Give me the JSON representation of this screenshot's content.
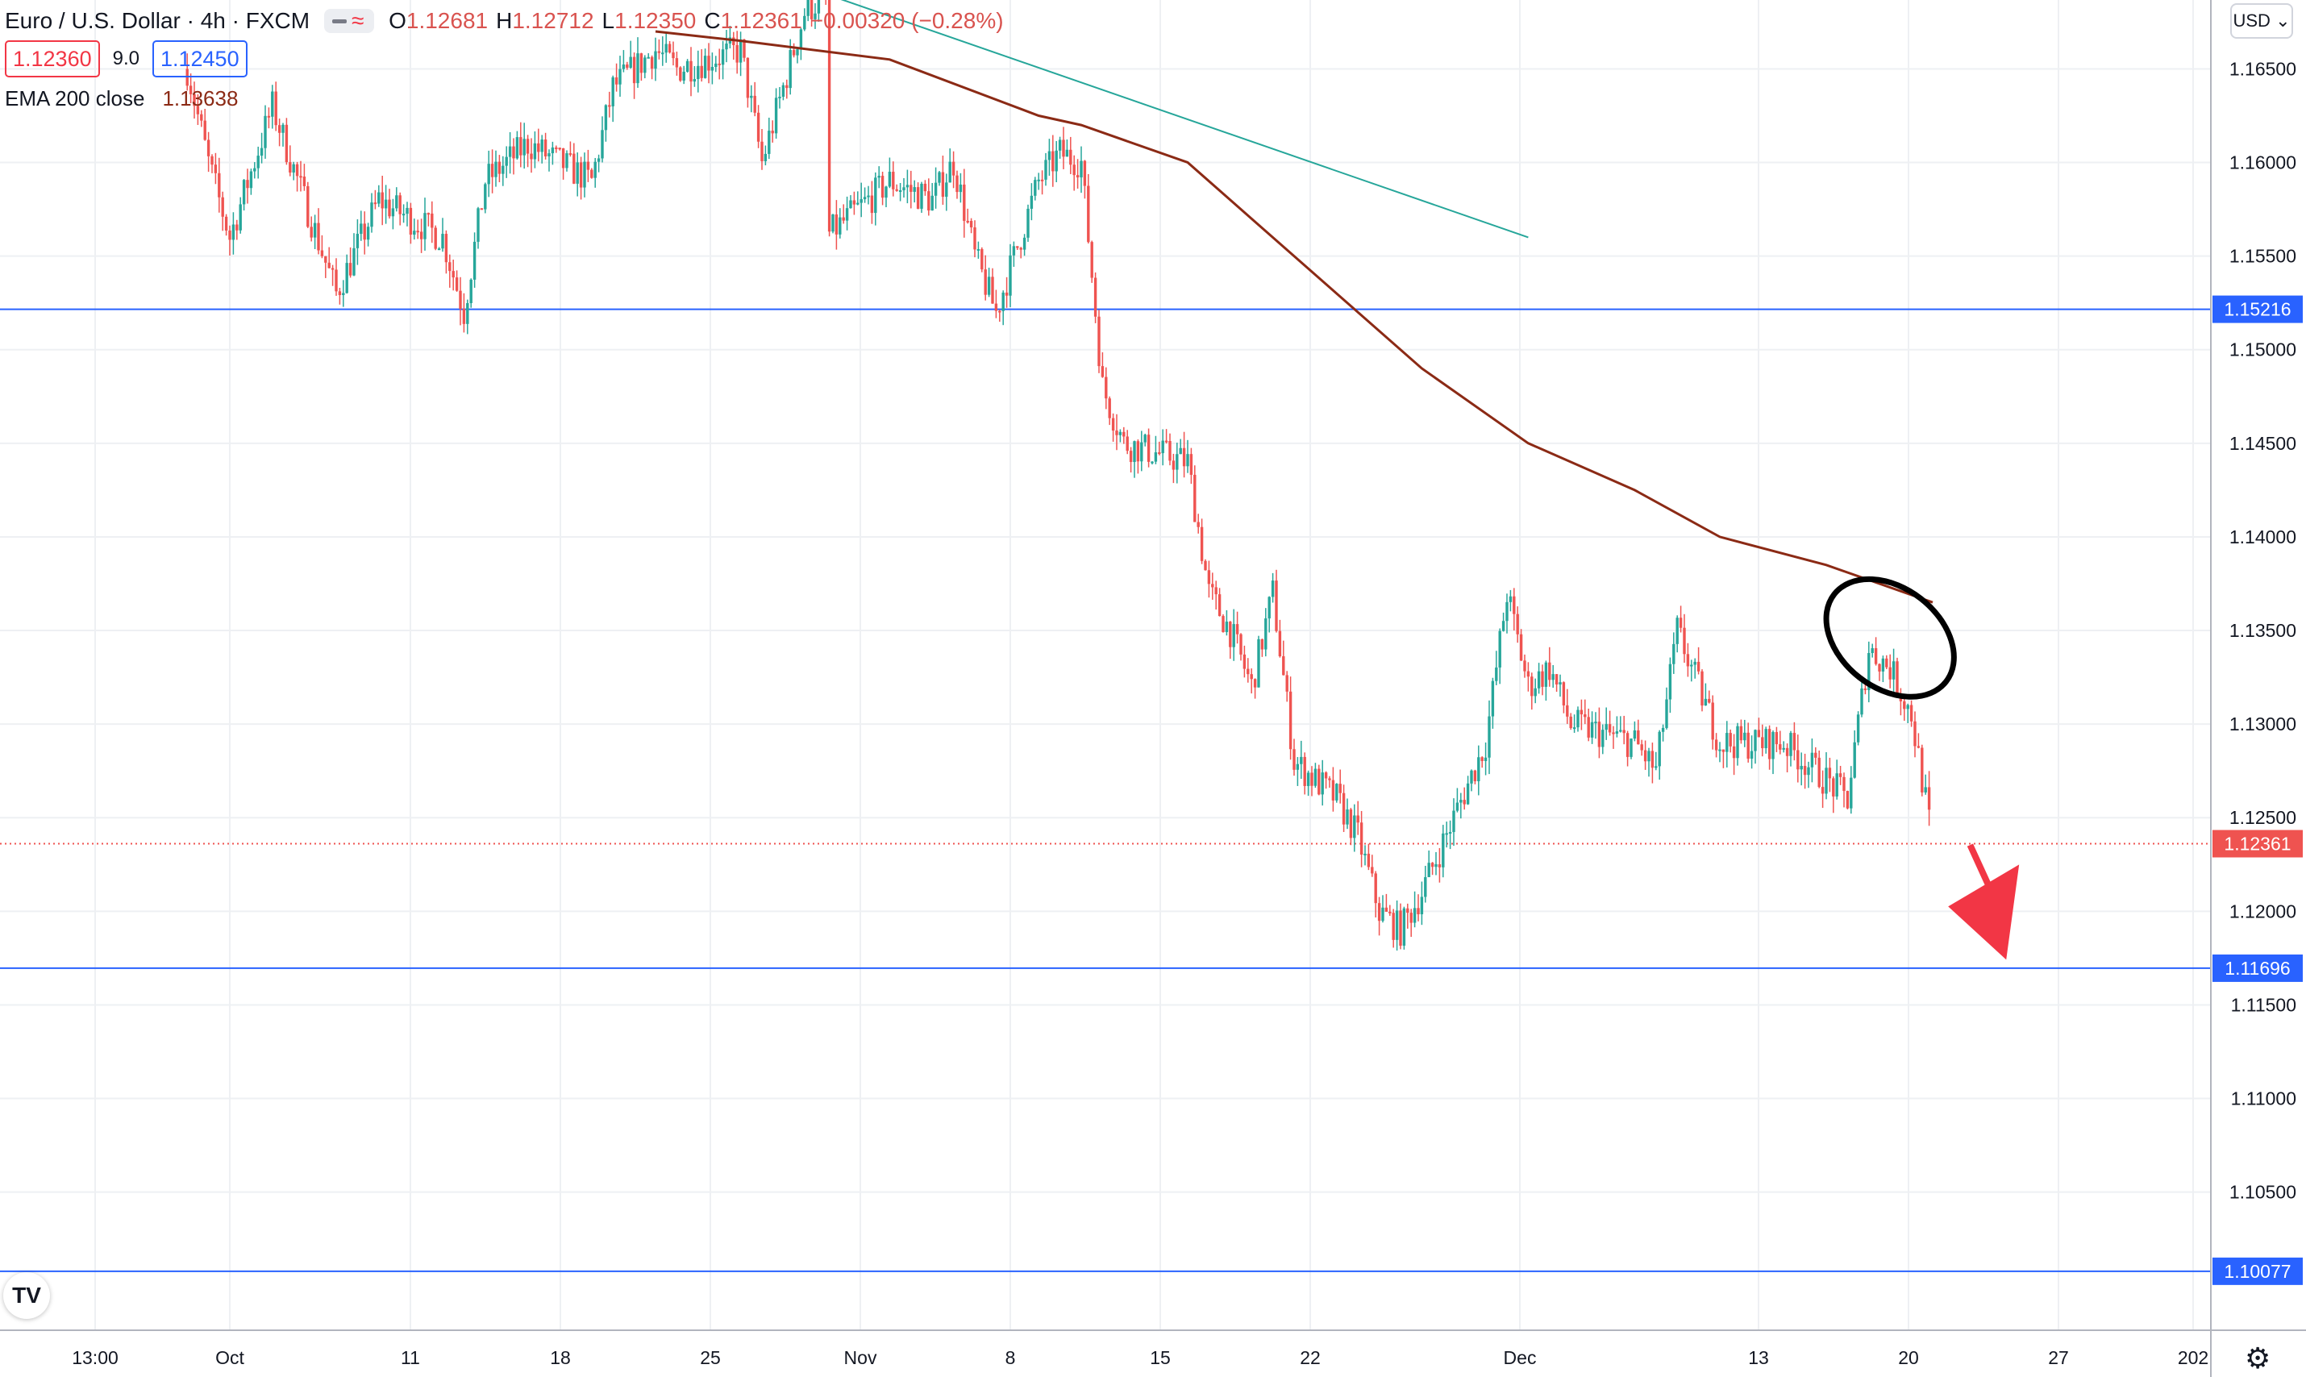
{
  "legend": {
    "symbol": "Euro / U.S. Dollar · 4h · FXCM",
    "open_label": "O",
    "open": "1.12681",
    "high_label": "H",
    "high": "1.12712",
    "low_label": "L",
    "low": "1.12350",
    "close_label": "C",
    "close": "1.12361",
    "change": "−0.00320 (−0.28%)",
    "sell_price": "1.12360",
    "spread": "9.0",
    "buy_price": "1.12450",
    "ema_label": "EMA 200 close",
    "ema_value": "1.13638"
  },
  "toolbar": {
    "currency": "USD",
    "logo": "TV",
    "settings_icon": "gear-icon"
  },
  "colors": {
    "up": "#26a69a",
    "down": "#ef5350",
    "ema": "#8b2a15",
    "hline": "#2962ff",
    "trendline": "#26a69a",
    "annotation_arrow": "#f23645"
  },
  "chart_data": {
    "type": "candlestick",
    "title": "Euro / U.S. Dollar · 4h · FXCM",
    "ylim": [
      1.09762,
      1.16868
    ],
    "y_ticks": [
      "1.16500",
      "1.16000",
      "1.15500",
      "1.15000",
      "1.14500",
      "1.14000",
      "1.13500",
      "1.13000",
      "1.12500",
      "1.12000",
      "1.11500",
      "1.11000",
      "1.10500"
    ],
    "x_ticks": [
      "13:00",
      "Oct",
      "11",
      "18",
      "25",
      "Nov",
      "8",
      "15",
      "22",
      "Dec",
      "13",
      "20",
      "27",
      "202"
    ],
    "price_path": [
      [
        "Sep 29",
        1.165
      ],
      [
        "Sep 30",
        1.16
      ],
      [
        "Oct 1",
        1.156
      ],
      [
        "Oct 3",
        1.163
      ],
      [
        "Oct 6",
        1.153
      ],
      [
        "Oct 8",
        1.158
      ],
      [
        "Oct 11",
        1.156
      ],
      [
        "Oct 12",
        1.152
      ],
      [
        "Oct 13",
        1.159
      ],
      [
        "Oct 15",
        1.161
      ],
      [
        "Oct 18",
        1.159
      ],
      [
        "Oct 19",
        1.164
      ],
      [
        "Oct 21",
        1.166
      ],
      [
        "Oct 22",
        1.165
      ],
      [
        "Oct 25",
        1.166
      ],
      [
        "Oct 26",
        1.16
      ],
      [
        "Oct 28",
        1.168
      ],
      [
        "Oct 29",
        1.169
      ],
      [
        "Oct 29",
        1.156
      ],
      [
        "Nov 1",
        1.159
      ],
      [
        "Nov 3",
        1.158
      ],
      [
        "Nov 4",
        1.16
      ],
      [
        "Nov 5",
        1.155
      ],
      [
        "Nov 6",
        1.152
      ],
      [
        "Nov 8",
        1.159
      ],
      [
        "Nov 9",
        1.1605
      ],
      [
        "Nov 10",
        1.16
      ],
      [
        "Nov 11",
        1.148
      ],
      [
        "Nov 12",
        1.145
      ],
      [
        "Nov 15",
        1.144
      ],
      [
        "Nov 16",
        1.137
      ],
      [
        "Nov 17",
        1.135
      ],
      [
        "Nov 18",
        1.132
      ],
      [
        "Nov 19",
        1.137
      ],
      [
        "Nov 20",
        1.128
      ],
      [
        "Nov 22",
        1.126
      ],
      [
        "Nov 23",
        1.124
      ],
      [
        "Nov 24",
        1.12
      ],
      [
        "Nov 25",
        1.119
      ],
      [
        "Nov 26",
        1.121
      ],
      [
        "Nov 29",
        1.129
      ],
      [
        "Nov 30",
        1.137
      ],
      [
        "Dec 1",
        1.132
      ],
      [
        "Dec 2",
        1.133
      ],
      [
        "Dec 3",
        1.13
      ],
      [
        "Dec 6",
        1.129
      ],
      [
        "Dec 7",
        1.1275
      ],
      [
        "Dec 8",
        1.135
      ],
      [
        "Dec 9",
        1.132
      ],
      [
        "Dec 10",
        1.129
      ],
      [
        "Dec 13",
        1.129
      ],
      [
        "Dec 14",
        1.128
      ],
      [
        "Dec 15",
        1.127
      ],
      [
        "Dec 16",
        1.126
      ],
      [
        "Dec 17",
        1.134
      ],
      [
        "Dec 18",
        1.133
      ],
      [
        "Dec 19",
        1.1305
      ],
      [
        "Dec 20",
        1.1236
      ]
    ],
    "ema_200": [
      [
        "Oct 21",
        1.167
      ],
      [
        "Oct 25",
        1.1665
      ],
      [
        "Nov 1",
        1.1655
      ],
      [
        "Nov 8",
        1.1625
      ],
      [
        "Nov 10",
        1.162
      ],
      [
        "Nov 15",
        1.16
      ],
      [
        "Nov 18",
        1.157
      ],
      [
        "Nov 22",
        1.153
      ],
      [
        "Nov 26",
        1.149
      ],
      [
        "Dec 1",
        1.145
      ],
      [
        "Dec 6",
        1.1425
      ],
      [
        "Dec 10",
        1.14
      ],
      [
        "Dec 15",
        1.1385
      ],
      [
        "Dec 20",
        1.1365
      ]
    ],
    "trendline": [
      [
        "Oct 29",
        1.169
      ],
      [
        "Dec 1",
        1.156
      ]
    ],
    "horizontal_lines": [
      {
        "price": 1.15216,
        "label": "1.15216"
      },
      {
        "price": 1.11696,
        "label": "1.11696"
      },
      {
        "price": 1.10077,
        "label": "1.10077"
      }
    ],
    "last_price": {
      "price": 1.12361,
      "label": "1.12361"
    },
    "annotations": [
      {
        "type": "ellipse",
        "center": [
          "Dec 18",
          1.1346
        ]
      },
      {
        "type": "arrow",
        "direction": "down",
        "from": [
          "Dec 21",
          1.1238
        ],
        "to": [
          "Dec 23",
          1.12
        ]
      }
    ]
  }
}
